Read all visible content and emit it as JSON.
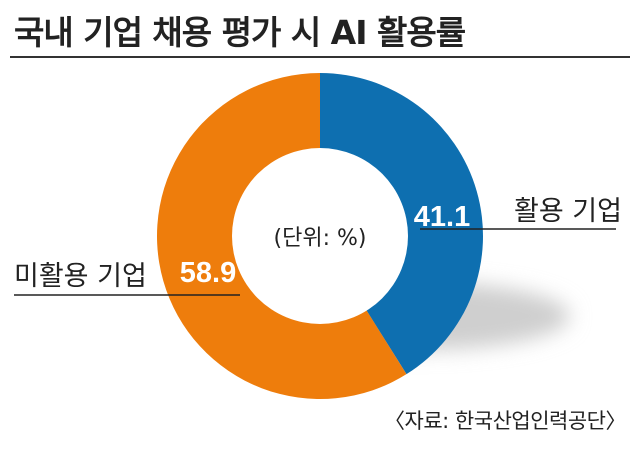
{
  "title": "국내 기업 채용 평가 시 AI 활용률",
  "source": "〈자료: 한국산업인력공단〉",
  "colors": {
    "used": "#0E6FB0",
    "unused": "#EE7D0C",
    "shadow": "#cfcfcf",
    "text": "#222222"
  },
  "chart_data": {
    "type": "pie",
    "title": "국내 기업 채용 평가 시 AI 활용률",
    "unit_label": "(단위: %)",
    "categories": [
      "활용 기업",
      "미활용 기업"
    ],
    "values": [
      41.1,
      58.9
    ],
    "value_labels": [
      "41.1",
      "58.9"
    ],
    "donut": true
  }
}
